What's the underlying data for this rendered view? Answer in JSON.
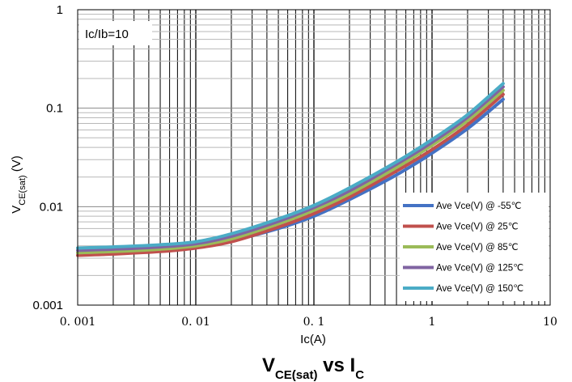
{
  "chart_data": {
    "type": "line",
    "title": "V",
    "title_sub": "CE(sat)",
    "title_mid": " vs I",
    "title_sub2": "C",
    "xlabel": "Ic(A)",
    "ylabel": "V",
    "ylabel_sub": "CE(sat)",
    "ylabel_suffix": " (V)",
    "xscale": "log",
    "yscale": "log",
    "xlim": [
      0.001,
      10
    ],
    "ylim": [
      0.001,
      1
    ],
    "grid": true,
    "annotation": "Ic/Ib=10",
    "x_ticks": [
      "0. 001",
      "0. 01",
      "0. 1",
      "1",
      "10"
    ],
    "y_ticks": [
      "0.001",
      "0.01",
      "0.1",
      "1"
    ],
    "legend_position": "lower-right",
    "x": [
      0.001,
      0.002,
      0.005,
      0.01,
      0.02,
      0.05,
      0.1,
      0.2,
      0.5,
      1,
      2,
      4
    ],
    "series": [
      {
        "name": "Ave Vce(V) @ -55℃",
        "color": "#4472c4",
        "values": [
          0.0034,
          0.0035,
          0.0036,
          0.0039,
          0.0045,
          0.006,
          0.008,
          0.0118,
          0.021,
          0.035,
          0.062,
          0.123
        ]
      },
      {
        "name": "Ave Vce(V) @ 25℃",
        "color": "#c0504d",
        "values": [
          0.0032,
          0.0033,
          0.0035,
          0.0038,
          0.0044,
          0.0062,
          0.0085,
          0.0125,
          0.023,
          0.038,
          0.068,
          0.138
        ]
      },
      {
        "name": "Ave Vce(V) @ 85℃",
        "color": "#9bbb59",
        "values": [
          0.0034,
          0.0035,
          0.0037,
          0.004,
          0.0047,
          0.0067,
          0.0092,
          0.0135,
          0.025,
          0.042,
          0.075,
          0.152
        ]
      },
      {
        "name": "Ave Vce(V) @ 125℃",
        "color": "#8064a2",
        "values": [
          0.0036,
          0.0037,
          0.0039,
          0.0042,
          0.005,
          0.0071,
          0.0098,
          0.0145,
          0.027,
          0.045,
          0.081,
          0.165
        ]
      },
      {
        "name": "Ave Vce(V) @ 150℃",
        "color": "#4bacc6",
        "values": [
          0.0038,
          0.0039,
          0.0041,
          0.0044,
          0.0053,
          0.0075,
          0.0103,
          0.0155,
          0.0285,
          0.048,
          0.086,
          0.178
        ]
      }
    ]
  }
}
